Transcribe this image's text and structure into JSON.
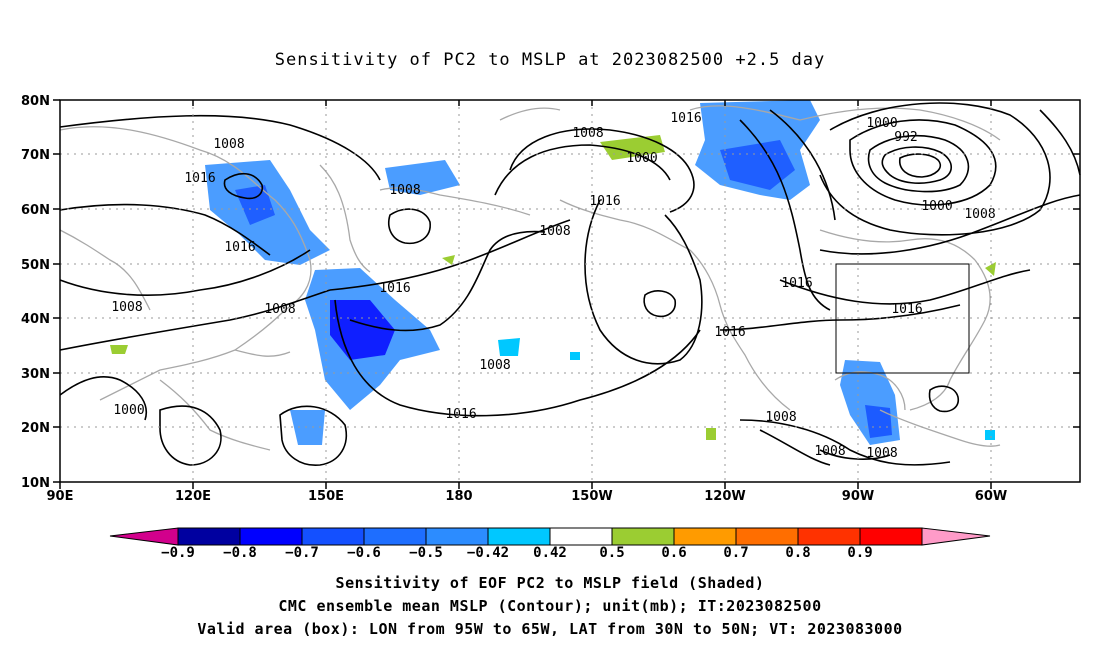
{
  "title": "Sensitivity of PC2 to MSLP at 2023082500 +2.5 day",
  "map": {
    "lat_labels": [
      "80N",
      "70N",
      "60N",
      "50N",
      "40N",
      "30N",
      "20N",
      "10N"
    ],
    "lon_labels": [
      "90E",
      "120E",
      "150E",
      "180",
      "150W",
      "120W",
      "90W",
      "60W"
    ],
    "lat_range": [
      10,
      80
    ],
    "lon_range_east": [
      90,
      320
    ],
    "box": {
      "lon_w": "95W",
      "lon_e": "65W",
      "lat_s": "30N",
      "lat_n": "50N"
    },
    "contour_labels": [
      "1016",
      "1008",
      "1000",
      "992",
      "1000",
      "1008",
      "1016",
      "1008",
      "1008",
      "1016",
      "1016",
      "1008",
      "1000",
      "1016",
      "1008",
      "1016",
      "1016",
      "1008",
      "1016",
      "1008",
      "1016",
      "1008",
      "1008",
      "1008",
      "1000"
    ]
  },
  "colorbar": {
    "labels": [
      "-0.9",
      "-0.8",
      "-0.7",
      "-0.6",
      "-0.5",
      "-0.42",
      "0.42",
      "0.5",
      "0.6",
      "0.7",
      "0.8",
      "0.9"
    ],
    "colors": [
      "#0000a0",
      "#0000ff",
      "#1450ff",
      "#1e6eff",
      "#2c8cff",
      "#00c8ff",
      "#ffffff",
      "#9bcd32",
      "#ff9b00",
      "#ff6e00",
      "#ff3200",
      "#ff0000"
    ],
    "low_end": "#d2008c",
    "high_end": "#ff9bc8"
  },
  "captions": {
    "line1": "Sensitivity of EOF PC2 to MSLP field (Shaded)",
    "line2": "CMC ensemble mean MSLP (Contour); unit(mb); IT:2023082500",
    "line3": "Valid area (box): LON from 95W to 65W, LAT from 30N to 50N; VT: 2023083000"
  }
}
